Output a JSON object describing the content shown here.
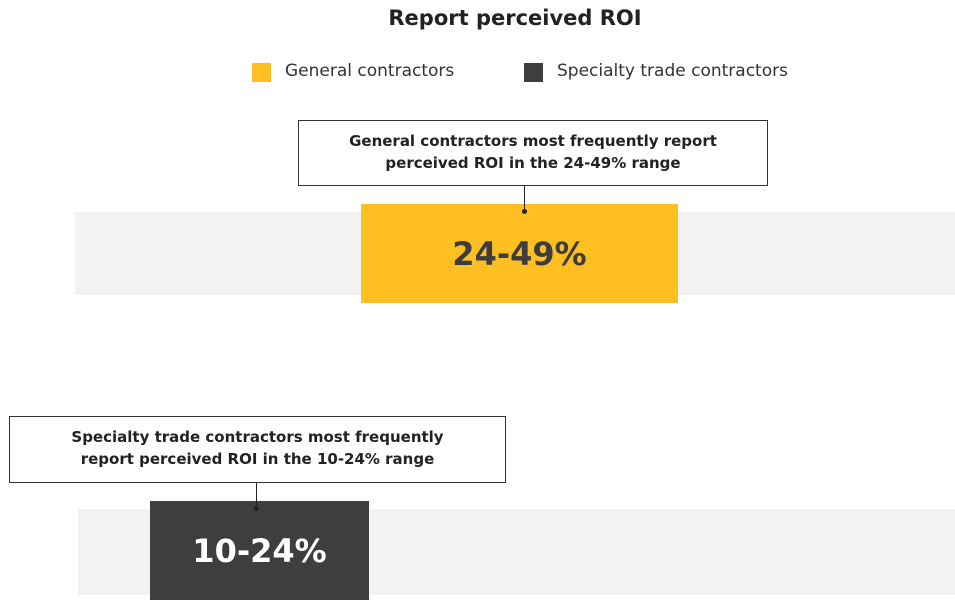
{
  "chart_data": {
    "type": "range",
    "title": "Report perceived ROI",
    "series": [
      {
        "name": "General contractors",
        "color": "#fdbf21",
        "callout": [
          "General contractors most frequently report",
          "perceived ROI in the 24-49% range"
        ],
        "range": "24-49%"
      },
      {
        "name": "Specialty trade contractors",
        "color": "#3e3e3e",
        "callout": [
          "Specialty trade contractors most frequently",
          "report perceived ROI in the 10-24% range"
        ],
        "range": "10-24%"
      }
    ]
  }
}
